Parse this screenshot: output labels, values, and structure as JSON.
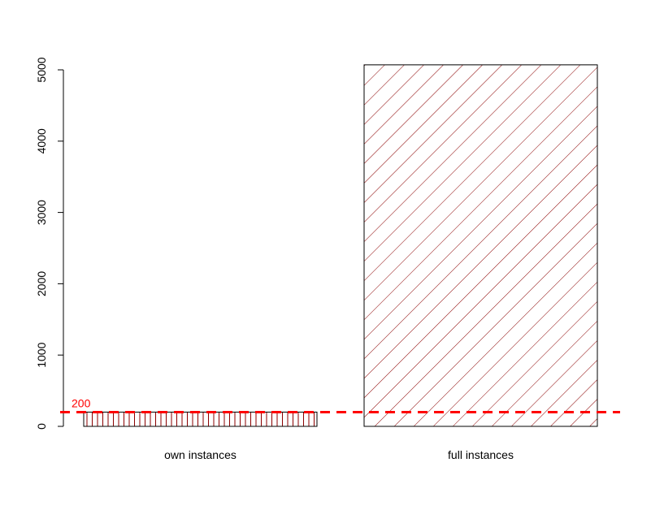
{
  "chart_data": {
    "type": "bar",
    "categories": [
      "own instances",
      "full instances"
    ],
    "values": [
      200,
      5070
    ],
    "title": "",
    "xlabel": "",
    "ylabel": "",
    "ylim": [
      0,
      5000
    ],
    "yticks": [
      "0",
      "1000",
      "2000",
      "3000",
      "4000",
      "5000"
    ],
    "ytick_values": [
      0,
      1000,
      2000,
      3000,
      4000,
      5000
    ],
    "bar_fills": [
      {
        "pattern": "vertical-lines",
        "color": "#8b0000"
      },
      {
        "pattern": "diagonal-lines",
        "color": "#8b0000"
      }
    ],
    "reference_line": {
      "value": 200,
      "label": "200",
      "color": "#ff0000",
      "style": "dashed"
    },
    "grid": false,
    "legend": "none"
  }
}
